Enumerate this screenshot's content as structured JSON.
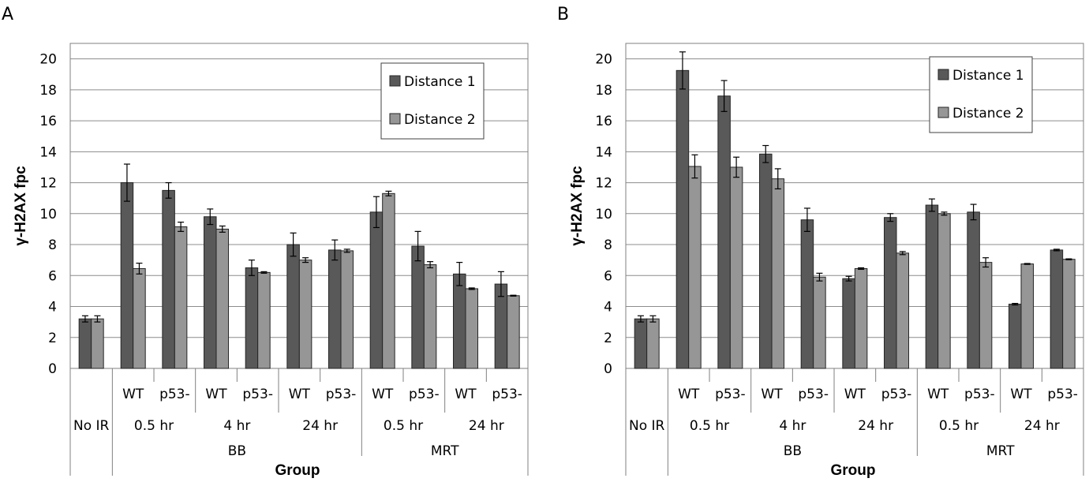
{
  "chart_data": [
    {
      "type": "bar",
      "panel": "A",
      "ylabel": "γ-H2AX fpc",
      "xlabel": "Group",
      "ylim": [
        0,
        21
      ],
      "yticks": [
        0,
        2,
        4,
        6,
        8,
        10,
        12,
        14,
        16,
        18,
        20
      ],
      "grid": true,
      "legend_position": "top-right",
      "categories": [
        "No IR",
        "BB 0.5 hr WT",
        "BB 0.5 hr p53-",
        "BB 4 hr WT",
        "BB 4 hr p53-",
        "BB 24 hr WT",
        "BB 24 hr p53-",
        "MRT 0.5 hr WT",
        "MRT 0.5 hr p53-",
        "MRT 24 hr WT",
        "MRT 24 hr p53-"
      ],
      "series": [
        {
          "name": "Distance 1",
          "color": "#595959",
          "values": [
            3.2,
            12.0,
            11.5,
            9.8,
            6.5,
            8.0,
            7.65,
            10.1,
            7.9,
            6.1,
            5.45
          ],
          "errors": [
            0.2,
            1.2,
            0.5,
            0.5,
            0.5,
            0.75,
            0.65,
            1.0,
            0.95,
            0.75,
            0.8
          ]
        },
        {
          "name": "Distance 2",
          "color": "#969696",
          "values": [
            3.2,
            6.45,
            9.15,
            9.0,
            6.2,
            7.0,
            7.6,
            11.3,
            6.7,
            5.15,
            4.7
          ],
          "errors": [
            0.2,
            0.35,
            0.3,
            0.2,
            0.05,
            0.15,
            0.1,
            0.15,
            0.2,
            0.05,
            0.03
          ]
        }
      ]
    },
    {
      "type": "bar",
      "panel": "B",
      "ylabel": "γ-H2AX fpc",
      "xlabel": "Group",
      "ylim": [
        0,
        21
      ],
      "yticks": [
        0,
        2,
        4,
        6,
        8,
        10,
        12,
        14,
        16,
        18,
        20
      ],
      "grid": true,
      "legend_position": "top-right",
      "categories": [
        "No IR",
        "BB 0.5 hr WT",
        "BB 0.5 hr p53-",
        "BB 4 hr WT",
        "BB 4 hr p53-",
        "BB 24 hr WT",
        "BB 24 hr p53-",
        "MRT 0.5 hr WT",
        "MRT 0.5 hr p53-",
        "MRT 24 hr WT",
        "MRT 24 hr p53-"
      ],
      "series": [
        {
          "name": "Distance 1",
          "color": "#595959",
          "values": [
            3.2,
            19.25,
            17.6,
            13.85,
            9.6,
            5.8,
            9.75,
            10.55,
            10.1,
            4.15,
            7.65
          ],
          "errors": [
            0.2,
            1.2,
            1.0,
            0.55,
            0.75,
            0.15,
            0.25,
            0.4,
            0.5,
            0.05,
            0.05
          ]
        },
        {
          "name": "Distance 2",
          "color": "#969696",
          "values": [
            3.2,
            13.05,
            13.0,
            12.25,
            5.9,
            6.45,
            7.45,
            10.0,
            6.85,
            6.75,
            7.05
          ],
          "errors": [
            0.2,
            0.75,
            0.65,
            0.65,
            0.25,
            0.05,
            0.1,
            0.1,
            0.3,
            0.03,
            0.03
          ]
        }
      ]
    }
  ],
  "panels": [
    {
      "letter": "A",
      "ylabel": "γ-H2AX fpc",
      "xlabel": "Group",
      "legend": [
        "Distance 1",
        "Distance 2"
      ],
      "row1": [
        "WT",
        "p53-",
        "WT",
        "p53-",
        "WT",
        "p53-",
        "WT",
        "p53-",
        "WT",
        "p53-"
      ],
      "row2": [
        "No IR",
        "0.5 hr",
        "4 hr",
        "24 hr",
        "0.5 hr",
        "24 hr"
      ],
      "row3": [
        "BB",
        "MRT"
      ]
    },
    {
      "letter": "B",
      "ylabel": "γ-H2AX fpc",
      "xlabel": "Group",
      "legend": [
        "Distance 1",
        "Distance 2"
      ],
      "row1": [
        "WT",
        "p53-",
        "WT",
        "p53-",
        "WT",
        "p53-",
        "WT",
        "p53-",
        "WT",
        "p53-"
      ],
      "row2": [
        "No IR",
        "0.5 hr",
        "4 hr",
        "24 hr",
        "0.5 hr",
        "24 hr"
      ],
      "row3": [
        "BB",
        "MRT"
      ]
    }
  ]
}
